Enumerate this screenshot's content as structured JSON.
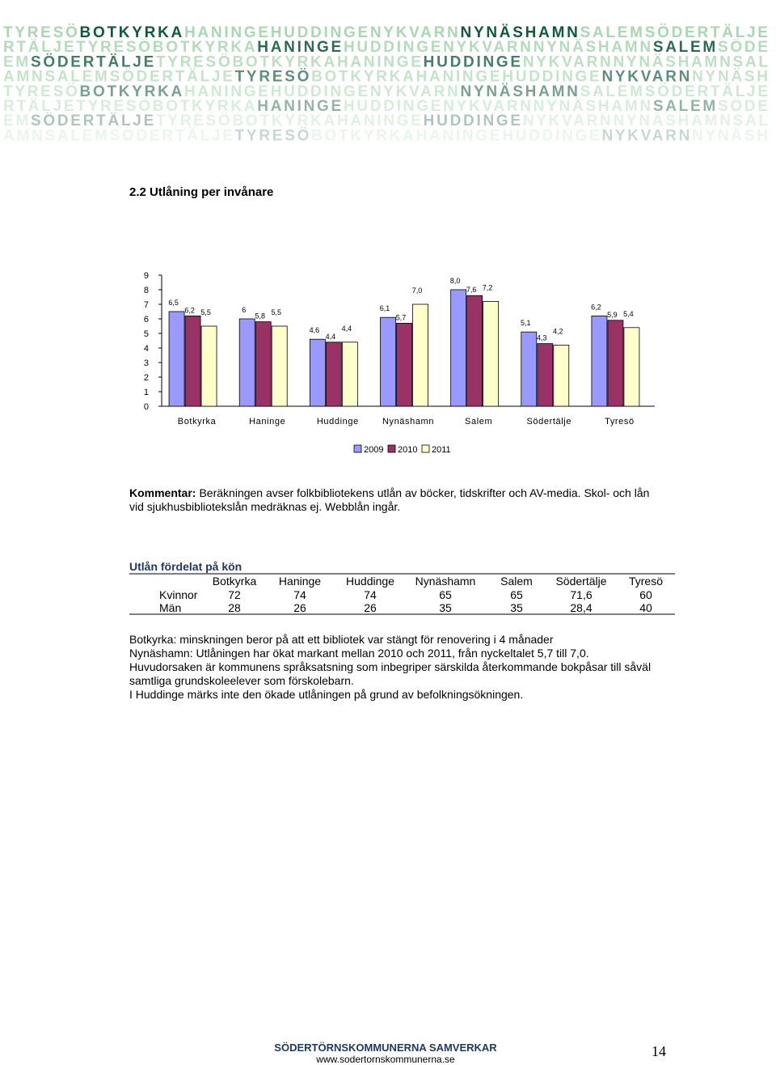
{
  "banner": {
    "rows": [
      {
        "words": [
          "TYRESÖ",
          "BOTKYRKA",
          "HANINGE",
          "HUDDINGE",
          "NYKVARN",
          "NYNÄSHAMN",
          "SALEM",
          "SÖDERTÄLJE"
        ],
        "strong": [
          1,
          5
        ]
      },
      {
        "words": [
          "RTÄLJE",
          "TYRESÖ",
          "BOTKYRKA",
          "HANINGE",
          "HUDDINGE",
          "NYKVARN",
          "NYNÄSHAMN",
          "SALEM",
          "SÖDE"
        ],
        "strong": [
          3,
          7
        ]
      },
      {
        "words": [
          "EM",
          "SÖDERTÄLJE",
          "TYRESÖ",
          "BOTKYRKA",
          "HANINGE",
          "HUDDINGE",
          "NYKVARN",
          "NYNÄSHAMN",
          "SAL"
        ],
        "strong": [
          1,
          5
        ]
      },
      {
        "words": [
          "AMN",
          "SALEM",
          "SÖDERTÄLJE",
          "TYRESÖ",
          "BOTKYRKA",
          "HANINGE",
          "HUDDINGE",
          "NYKVARN",
          "NYNÄSH"
        ],
        "strong": [
          3,
          7
        ]
      },
      {
        "words": [
          "TYRESÖ",
          "BOTKYRKA",
          "HANINGE",
          "HUDDINGE",
          "NYKVARN",
          "NYNÄSHAMN",
          "SALEM",
          "SÖDERTÄLJE"
        ],
        "strong": [
          1,
          5
        ]
      },
      {
        "words": [
          "RTÄLJE",
          "TYRESÖ",
          "BOTKYRKA",
          "HANINGE",
          "HUDDINGE",
          "NYKVARN",
          "NYNÄSHAMN",
          "SALEM",
          "SÖDE"
        ],
        "strong": [
          3,
          7
        ]
      },
      {
        "words": [
          "EM",
          "SÖDERTÄLJE",
          "TYRESÖ",
          "BOTKYRKA",
          "HANINGE",
          "HUDDINGE",
          "NYKVARN",
          "NYNÄSHAMN",
          "SAL"
        ],
        "strong": [
          1,
          5
        ]
      },
      {
        "words": [
          "AMN",
          "SALEM",
          "SÖDERTÄLJE",
          "TYRESÖ",
          "BOTKYRKA",
          "HANINGE",
          "HUDDINGE",
          "NYKVARN",
          "NYNÄSH"
        ],
        "strong": [
          3,
          7
        ]
      }
    ]
  },
  "section_title": "2.2 Utlåning per invånare",
  "chart_data": {
    "type": "bar",
    "categories": [
      "Botkyrka",
      "Haninge",
      "Huddinge",
      "Nynäshamn",
      "Salem",
      "Södertälje",
      "Tyresö"
    ],
    "series": [
      {
        "name": "2009",
        "color": "#9999ff",
        "values": [
          6.5,
          6,
          4.6,
          6.1,
          8.0,
          5.1,
          6.2
        ],
        "value_labels": [
          "6,5",
          "6",
          "4,6",
          "6,1",
          "8,0",
          "5,1",
          "6,2"
        ]
      },
      {
        "name": "2010",
        "color": "#993366",
        "values": [
          6.2,
          5.8,
          4.4,
          5.7,
          7.6,
          4.3,
          5.9
        ],
        "value_labels": [
          "6,2",
          "5,8",
          "4,4",
          "5,7",
          "7,6",
          "4,3",
          "5,9"
        ]
      },
      {
        "name": "2011",
        "color": "#ffffcc",
        "values": [
          5.5,
          5.5,
          4.4,
          7.0,
          7.2,
          4.2,
          5.4
        ],
        "value_labels": [
          "5,5",
          "5,5",
          "4,4",
          "7,0",
          "7,2",
          "4,2",
          "5,4"
        ]
      }
    ],
    "ylim": [
      0,
      9
    ],
    "yticks": [
      0,
      1,
      2,
      3,
      4,
      5,
      6,
      7,
      8,
      9
    ],
    "legend": "bottom"
  },
  "comment": {
    "label": "Kommentar:",
    "text": "Beräkningen avser folkbibliotekens utlån av böcker, tidskrifter och AV-media. Skol- och lån vid sjukhusbibliotekslån medräknas ej. Webblån ingår."
  },
  "table": {
    "title": "Utlån fördelat på kön",
    "columns": [
      "Botkyrka",
      "Haninge",
      "Huddinge",
      "Nynäshamn",
      "Salem",
      "Södertälje",
      "Tyresö"
    ],
    "rows": [
      [
        "Kvinnor",
        "72",
        "74",
        "74",
        "65",
        "65",
        "71,6",
        "60"
      ],
      [
        "Män",
        "28",
        "26",
        "26",
        "35",
        "35",
        "28,4",
        "40"
      ]
    ]
  },
  "notes": [
    "Botkyrka: minskningen beror på att ett bibliotek var stängt för renovering i 4 månader",
    "Nynäshamn: Utlåningen har ökat markant mellan 2010 och 2011, från nyckeltalet 5,7 till 7,0.",
    "Huvudorsaken är kommunens språksatsning som inbegriper särskilda återkommande bokpåsar till såväl samtliga grundskoleelever som förskolebarn.",
    "I Huddinge märks inte den ökade utlåningen på grund av befolkningsökningen."
  ],
  "footer": {
    "org": "SÖDERTÖRNSKOMMUNERNA SAMVERKAR",
    "url": "www.sodertornskommunerna.se",
    "page": "14"
  }
}
